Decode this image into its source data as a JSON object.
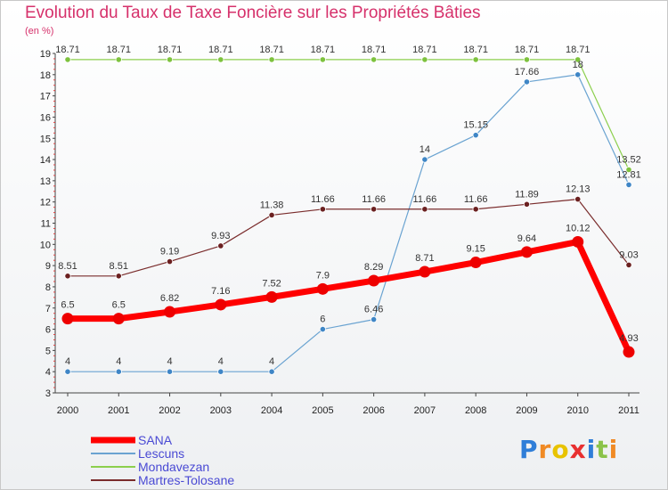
{
  "header": {
    "title": "Evolution du Taux de Taxe Foncière sur les Propriétés Bâties",
    "unit": "(en %)"
  },
  "brand": {
    "letters": [
      "P",
      "r",
      "o",
      "x",
      "i",
      "t",
      "i"
    ],
    "colors": [
      "#2f7ed8",
      "#f08a24",
      "#e8c300",
      "#e83030",
      "#2f7ed8",
      "#8bc34a",
      "#f08a24"
    ]
  },
  "chart_data": {
    "type": "line",
    "title": "Evolution du Taux de Taxe Foncière sur les Propriétés Bâties",
    "ylabel": "(en %)",
    "xlabel": "",
    "x": [
      "2000",
      "2001",
      "2002",
      "2003",
      "2004",
      "2005",
      "2006",
      "2007",
      "2008",
      "2009",
      "2010",
      "2011"
    ],
    "ylim": [
      3,
      19
    ],
    "yticks": [
      "3",
      "4",
      "5",
      "6",
      "7",
      "8",
      "9",
      "10",
      "11",
      "12",
      "13",
      "14",
      "15",
      "16",
      "17",
      "18",
      "19"
    ],
    "grid": false,
    "legend": "bottom-left",
    "series": [
      {
        "name": "Mondavezan",
        "color": "#8ccf4d",
        "marker": "#7ec23e",
        "width": 1.2,
        "values": [
          18.71,
          18.71,
          18.71,
          18.71,
          18.71,
          18.71,
          18.71,
          18.71,
          18.71,
          18.71,
          18.71,
          13.52
        ],
        "labels": [
          "18.71",
          "18.71",
          "18.71",
          "18.71",
          "18.71",
          "18.71",
          "18.71",
          "18.71",
          "18.71",
          "18.71",
          "18.71",
          "13.52"
        ]
      },
      {
        "name": "Lescuns",
        "color": "#6aa3d1",
        "marker": "#3f86c6",
        "width": 1.2,
        "values": [
          4,
          4,
          4,
          4,
          4,
          6,
          6.46,
          14,
          15.15,
          17.66,
          18,
          12.81
        ],
        "labels": [
          "4",
          "4",
          "4",
          "4",
          "4",
          "6",
          "6.46",
          "14",
          "15.15",
          "17.66",
          "18",
          "12.81"
        ]
      },
      {
        "name": "Martres-Tolosane",
        "color": "#7a2c2c",
        "marker": "#6b2020",
        "width": 1.2,
        "values": [
          8.51,
          8.51,
          9.19,
          9.93,
          11.38,
          11.66,
          11.66,
          11.66,
          11.66,
          11.89,
          12.13,
          9.03
        ],
        "labels": [
          "8.51",
          "8.51",
          "9.19",
          "9.93",
          "11.38",
          "11.66",
          "11.66",
          "11.66",
          "11.66",
          "11.89",
          "12.13",
          "9.03"
        ]
      },
      {
        "name": "SANA",
        "color": "#ff0000",
        "marker": "#ee0000",
        "width": 7,
        "values": [
          6.5,
          6.5,
          6.82,
          7.16,
          7.52,
          7.9,
          8.29,
          8.71,
          9.15,
          9.64,
          10.12,
          4.93
        ],
        "labels": [
          "6.5",
          "6.5",
          "6.82",
          "7.16",
          "7.52",
          "7.9",
          "8.29",
          "8.71",
          "9.15",
          "9.64",
          "10.12",
          "4.93"
        ]
      }
    ],
    "legend_order": [
      "SANA",
      "Lescuns",
      "Mondavezan",
      "Martres-Tolosane"
    ]
  }
}
